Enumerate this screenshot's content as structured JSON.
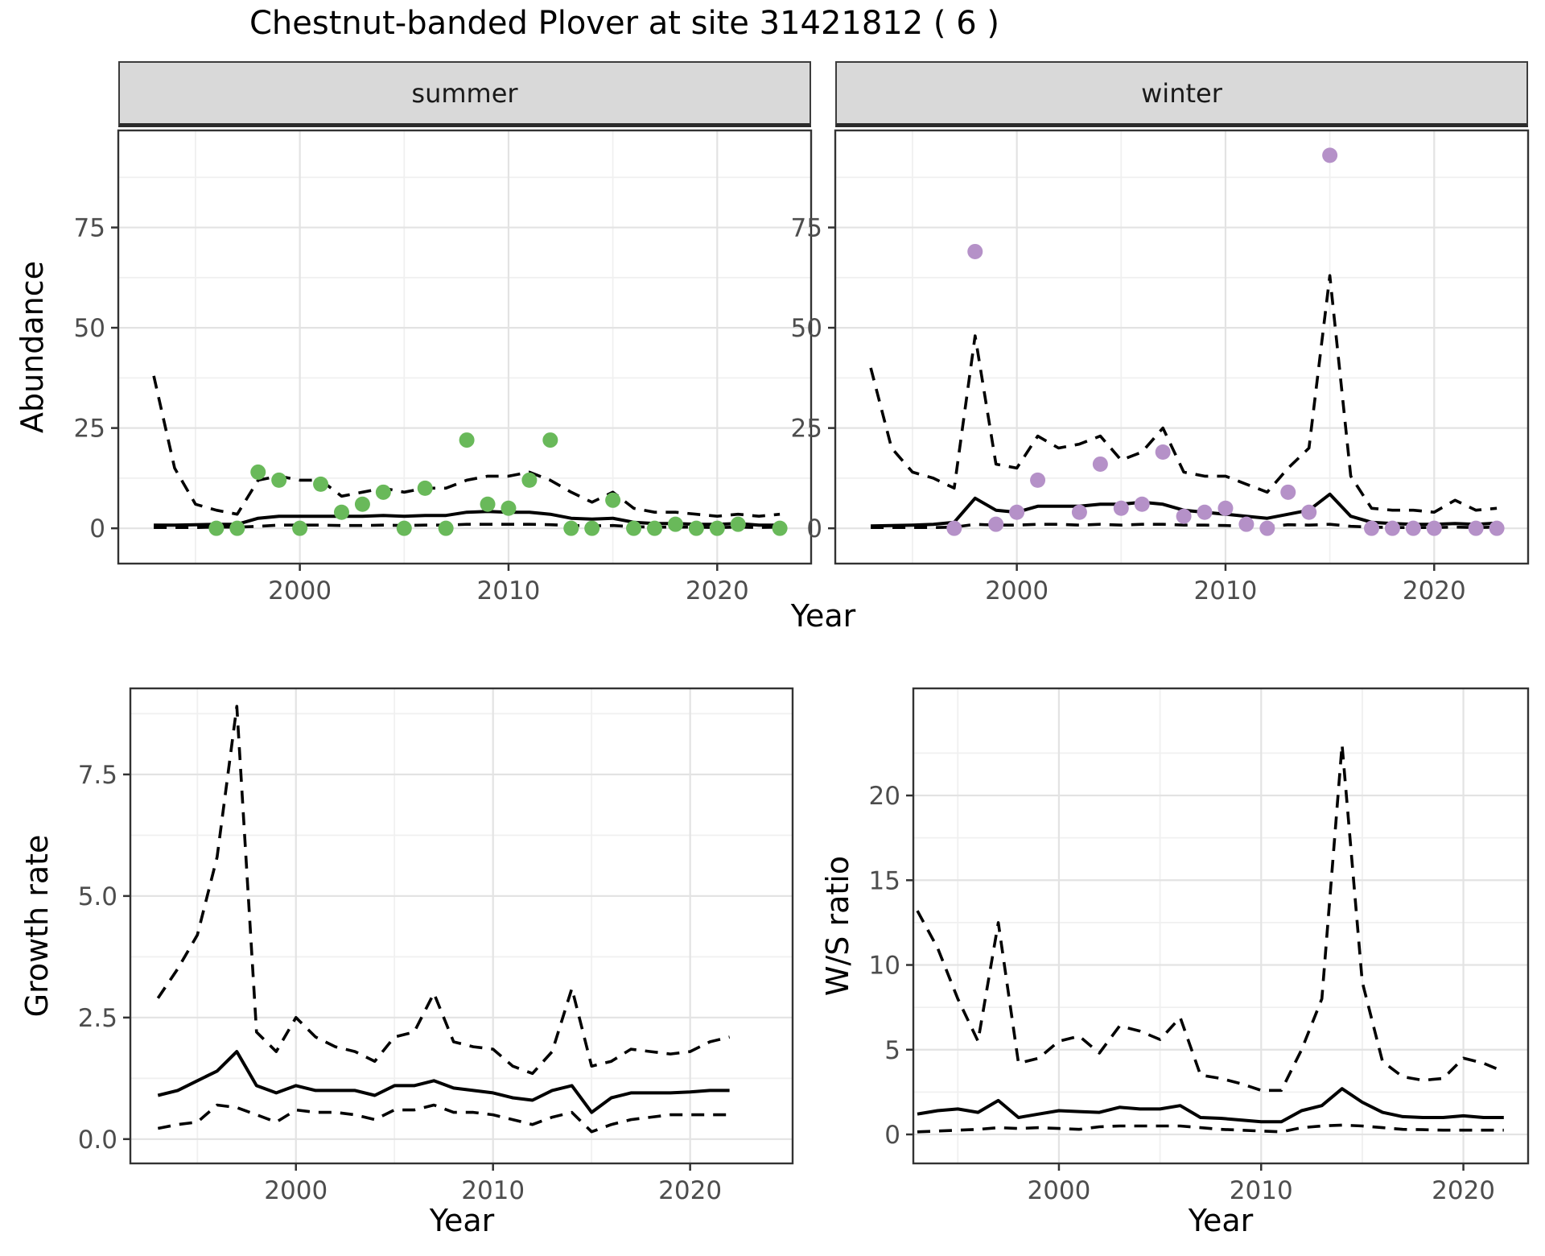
{
  "title": "Chestnut-banded Plover at site 31421812 ( 6 )",
  "facets": {
    "summer": "summer",
    "winter": "winter"
  },
  "axes": {
    "abundance_label": "Abundance",
    "year_label": "Year",
    "growth_label": "Growth rate",
    "ws_label": "W/S ratio"
  },
  "colors": {
    "summer_point": "#69b95a",
    "winter_point": "#b591c8",
    "line": "#000000",
    "strip_bg": "#d9d9d9",
    "grid_major": "#e3e3e3",
    "grid_minor": "#f0f0f0",
    "panel_border": "#333333",
    "tick_text": "#4d4d4d"
  },
  "chart_data": [
    {
      "key": "abundance_summer",
      "type": "line",
      "title": "summer",
      "xlabel": "Year",
      "ylabel": "Abundance",
      "xlim": [
        1991.3,
        2024.5
      ],
      "ylim": [
        -8.8,
        99.2
      ],
      "xticks": [
        2000,
        2010,
        2020
      ],
      "xtick_labels": [
        "2000",
        "2010",
        "2020"
      ],
      "xminor": [
        1995,
        2005,
        2015
      ],
      "yticks": [
        0,
        25,
        50,
        75
      ],
      "ytick_labels": [
        "0",
        "25",
        "50",
        "75"
      ],
      "yminor": [
        12.5,
        37.5,
        62.5,
        87.5
      ],
      "grid": true,
      "legend": "none",
      "x": [
        1993,
        1994,
        1995,
        1996,
        1997,
        1998,
        1999,
        2000,
        2001,
        2002,
        2003,
        2004,
        2005,
        2006,
        2007,
        2008,
        2009,
        2010,
        2011,
        2012,
        2013,
        2014,
        2015,
        2016,
        2017,
        2018,
        2019,
        2020,
        2021,
        2022,
        2023
      ],
      "series": [
        {
          "name": "upper_ci",
          "style": "dashed",
          "values": [
            38,
            15,
            6,
            4.5,
            3.5,
            12,
            13,
            12,
            12,
            8,
            9,
            10,
            9,
            10,
            10,
            12,
            13,
            13,
            14,
            12,
            9,
            6.5,
            9,
            5,
            4,
            4,
            3.5,
            3,
            3.5,
            3,
            3.5
          ]
        },
        {
          "name": "median",
          "style": "solid",
          "values": [
            0.8,
            0.8,
            0.9,
            1,
            1,
            2.5,
            3,
            3,
            3,
            3,
            3,
            3.2,
            3,
            3.2,
            3.2,
            4,
            4.2,
            4,
            4,
            3.5,
            2.5,
            2.3,
            2.5,
            1.5,
            1.2,
            1.2,
            1,
            1,
            1.2,
            0.8,
            0.8
          ]
        },
        {
          "name": "lower_ci",
          "style": "dashed",
          "values": [
            0.2,
            0.2,
            0.2,
            0.3,
            0.3,
            0.5,
            0.8,
            0.8,
            0.8,
            0.7,
            0.7,
            0.8,
            0.7,
            0.8,
            0.8,
            1,
            1,
            1,
            1,
            0.9,
            0.7,
            0.6,
            0.7,
            0.4,
            0.3,
            0.3,
            0.3,
            0.2,
            0.3,
            0.2,
            0.3
          ]
        }
      ],
      "points": {
        "color_key": "summer_point",
        "years": [
          1996,
          1997,
          1998,
          1999,
          2000,
          2001,
          2002,
          2003,
          2004,
          2005,
          2006,
          2007,
          2008,
          2009,
          2010,
          2011,
          2012,
          2013,
          2014,
          2015,
          2016,
          2017,
          2018,
          2019,
          2020,
          2021,
          2023
        ],
        "values": [
          0,
          0,
          14,
          12,
          0,
          11,
          4,
          6,
          9,
          0,
          10,
          0,
          22,
          6,
          5,
          12,
          22,
          0,
          0,
          7,
          0,
          0,
          1,
          0,
          0,
          1,
          0
        ]
      }
    },
    {
      "key": "abundance_winter",
      "type": "line",
      "title": "winter",
      "xlabel": "Year",
      "ylabel": "Abundance",
      "xlim": [
        1991.3,
        2024.5
      ],
      "ylim": [
        -8.8,
        99.2
      ],
      "xticks": [
        2000,
        2010,
        2020
      ],
      "xtick_labels": [
        "2000",
        "2010",
        "2020"
      ],
      "xminor": [
        1995,
        2005,
        2015
      ],
      "yticks": [
        0,
        25,
        50,
        75
      ],
      "ytick_labels": [
        "0",
        "25",
        "50",
        "75"
      ],
      "yminor": [
        12.5,
        37.5,
        62.5,
        87.5
      ],
      "grid": true,
      "legend": "none",
      "x": [
        1993,
        1994,
        1995,
        1996,
        1997,
        1998,
        1999,
        2000,
        2001,
        2002,
        2003,
        2004,
        2005,
        2006,
        2007,
        2008,
        2009,
        2010,
        2011,
        2012,
        2013,
        2014,
        2015,
        2016,
        2017,
        2018,
        2019,
        2020,
        2021,
        2022,
        2023
      ],
      "series": [
        {
          "name": "upper_ci",
          "style": "dashed",
          "values": [
            40,
            20,
            14,
            12.5,
            10,
            48,
            16,
            15,
            23,
            20,
            21,
            23,
            17,
            19,
            25,
            14,
            13,
            13,
            11,
            9,
            15,
            20,
            63,
            13,
            5,
            4.5,
            4.5,
            4,
            7,
            4.5,
            5
          ]
        },
        {
          "name": "median",
          "style": "solid",
          "values": [
            0.6,
            0.7,
            0.8,
            1,
            1.5,
            7.5,
            4.5,
            4,
            5.5,
            5.5,
            5.5,
            6,
            6,
            6.5,
            6,
            4.5,
            4,
            3.5,
            3,
            2.5,
            3.5,
            4.5,
            8.5,
            3,
            1.5,
            1.2,
            1,
            1,
            1.2,
            1,
            1.3
          ]
        },
        {
          "name": "lower_ci",
          "style": "dashed",
          "values": [
            0.2,
            0.2,
            0.2,
            0.2,
            0.3,
            1,
            0.8,
            0.8,
            1,
            1,
            0.8,
            1,
            0.8,
            1,
            1,
            0.8,
            0.8,
            0.7,
            0.5,
            0.4,
            0.9,
            0.8,
            1,
            0.5,
            0.3,
            0.2,
            0.2,
            0.2,
            0.3,
            0.2,
            0.3
          ]
        }
      ],
      "points": {
        "color_key": "winter_point",
        "years": [
          1997,
          1998,
          1999,
          2000,
          2001,
          2003,
          2004,
          2005,
          2006,
          2007,
          2008,
          2009,
          2010,
          2011,
          2012,
          2013,
          2014,
          2015,
          2017,
          2018,
          2019,
          2020,
          2022,
          2023
        ],
        "values": [
          0,
          69,
          1,
          4,
          12,
          4,
          16,
          5,
          6,
          19,
          3,
          4,
          5,
          1,
          0,
          9,
          4,
          93,
          0,
          0,
          0,
          0,
          0,
          0
        ]
      }
    },
    {
      "key": "growth_rate",
      "type": "line",
      "title": "",
      "xlabel": "Year",
      "ylabel": "Growth rate",
      "xlim": [
        1991.6,
        2025.2
      ],
      "ylim": [
        -0.5,
        9.27
      ],
      "xticks": [
        2000,
        2010,
        2020
      ],
      "xtick_labels": [
        "2000",
        "2010",
        "2020"
      ],
      "xminor": [
        1995,
        2005,
        2015
      ],
      "yticks": [
        0,
        2.5,
        5,
        7.5
      ],
      "ytick_labels": [
        "0.0",
        "2.5",
        "5.0",
        "7.5"
      ],
      "yminor": [
        1.25,
        3.75,
        6.25,
        8.75
      ],
      "grid": true,
      "legend": "none",
      "x": [
        1993,
        1994,
        1995,
        1996,
        1997,
        1998,
        1999,
        2000,
        2001,
        2002,
        2003,
        2004,
        2005,
        2006,
        2007,
        2008,
        2009,
        2010,
        2011,
        2012,
        2013,
        2014,
        2015,
        2016,
        2017,
        2018,
        2019,
        2020,
        2021,
        2022
      ],
      "series": [
        {
          "name": "upper_ci",
          "style": "dashed",
          "values": [
            2.9,
            3.5,
            4.2,
            5.8,
            8.9,
            2.2,
            1.8,
            2.5,
            2.1,
            1.9,
            1.8,
            1.6,
            2.1,
            2.2,
            3.0,
            2.0,
            1.9,
            1.85,
            1.5,
            1.35,
            1.8,
            3.1,
            1.5,
            1.6,
            1.85,
            1.8,
            1.75,
            1.8,
            2.0,
            2.1
          ]
        },
        {
          "name": "median",
          "style": "solid",
          "values": [
            0.9,
            1.0,
            1.2,
            1.4,
            1.8,
            1.1,
            0.95,
            1.1,
            1.0,
            1.0,
            1.0,
            0.9,
            1.1,
            1.1,
            1.2,
            1.05,
            1.0,
            0.95,
            0.85,
            0.8,
            1.0,
            1.1,
            0.55,
            0.85,
            0.95,
            0.95,
            0.95,
            0.97,
            1.0,
            1.0
          ]
        },
        {
          "name": "lower_ci",
          "style": "dashed",
          "values": [
            0.22,
            0.3,
            0.35,
            0.7,
            0.65,
            0.5,
            0.35,
            0.6,
            0.55,
            0.55,
            0.5,
            0.4,
            0.6,
            0.6,
            0.7,
            0.55,
            0.55,
            0.5,
            0.4,
            0.3,
            0.45,
            0.55,
            0.15,
            0.3,
            0.4,
            0.45,
            0.5,
            0.5,
            0.5,
            0.5
          ]
        }
      ],
      "points": null
    },
    {
      "key": "ws_ratio",
      "type": "line",
      "title": "",
      "xlabel": "Year",
      "ylabel": "W/S ratio",
      "xlim": [
        1992.8,
        2023.2
      ],
      "ylim": [
        -1.71,
        26.32
      ],
      "xticks": [
        2000,
        2010,
        2020
      ],
      "xtick_labels": [
        "2000",
        "2010",
        "2020"
      ],
      "xminor": [
        1995,
        2005,
        2015
      ],
      "yticks": [
        0,
        5,
        10,
        15,
        20
      ],
      "ytick_labels": [
        "0",
        "5",
        "10",
        "15",
        "20"
      ],
      "yminor": [
        2.5,
        7.5,
        12.5,
        17.5,
        22.5
      ],
      "grid": true,
      "legend": "none",
      "x": [
        1993,
        1994,
        1995,
        1996,
        1997,
        1998,
        1999,
        2000,
        2001,
        2002,
        2003,
        2004,
        2005,
        2006,
        2007,
        2008,
        2009,
        2010,
        2011,
        2012,
        2013,
        2014,
        2015,
        2016,
        2017,
        2018,
        2019,
        2020,
        2021,
        2022
      ],
      "series": [
        {
          "name": "upper_ci",
          "style": "dashed",
          "values": [
            13.2,
            11,
            8,
            5.5,
            12.5,
            4.2,
            4.5,
            5.5,
            5.8,
            4.8,
            6.4,
            6.1,
            5.6,
            6.9,
            3.5,
            3.3,
            3.0,
            2.6,
            2.6,
            5,
            8,
            23,
            9,
            4.3,
            3.4,
            3.2,
            3.3,
            4.5,
            4.2,
            3.7
          ]
        },
        {
          "name": "median",
          "style": "solid",
          "values": [
            1.2,
            1.4,
            1.5,
            1.3,
            2.0,
            1.0,
            1.2,
            1.4,
            1.35,
            1.3,
            1.6,
            1.5,
            1.5,
            1.7,
            1.0,
            0.95,
            0.85,
            0.75,
            0.75,
            1.4,
            1.7,
            2.7,
            1.9,
            1.3,
            1.05,
            1.0,
            1.0,
            1.1,
            1.0,
            1.0
          ]
        },
        {
          "name": "lower_ci",
          "style": "dashed",
          "values": [
            0.15,
            0.2,
            0.25,
            0.3,
            0.4,
            0.35,
            0.4,
            0.35,
            0.3,
            0.45,
            0.5,
            0.5,
            0.5,
            0.5,
            0.4,
            0.3,
            0.25,
            0.2,
            0.15,
            0.4,
            0.5,
            0.55,
            0.5,
            0.4,
            0.3,
            0.28,
            0.25,
            0.25,
            0.25,
            0.25
          ]
        }
      ],
      "points": null
    }
  ]
}
